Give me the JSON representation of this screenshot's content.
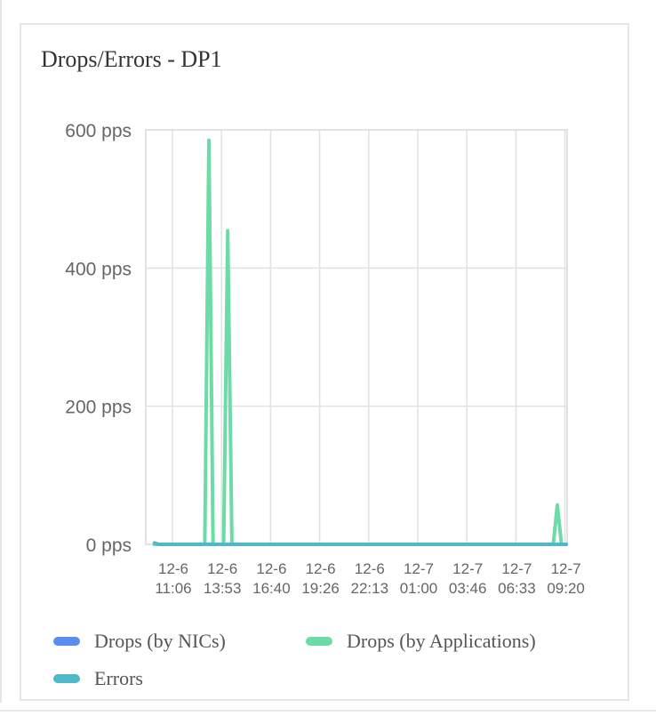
{
  "panel": {
    "title": "Drops/Errors - DP1"
  },
  "colors": {
    "drops_nics": "#5b8def",
    "drops_apps": "#6ddba6",
    "errors": "#4fb8c9",
    "grid": "#e2e2e2",
    "axis_text": "#666666"
  },
  "chart_data": {
    "type": "line",
    "title": "Drops/Errors - DP1",
    "xlabel": "",
    "ylabel": "",
    "y_unit": "pps",
    "ylim": [
      0,
      600
    ],
    "y_ticks": [
      "0 pps",
      "200 pps",
      "400 pps",
      "600 pps"
    ],
    "y_tick_values": [
      0,
      200,
      400,
      600
    ],
    "x_ticks": [
      {
        "date": "12-6",
        "time": "11:06"
      },
      {
        "date": "12-6",
        "time": "13:53"
      },
      {
        "date": "12-6",
        "time": "16:40"
      },
      {
        "date": "12-6",
        "time": "19:26"
      },
      {
        "date": "12-6",
        "time": "22:13"
      },
      {
        "date": "12-7",
        "time": "01:00"
      },
      {
        "date": "12-7",
        "time": "03:46"
      },
      {
        "date": "12-7",
        "time": "06:33"
      },
      {
        "date": "12-7",
        "time": "09:20"
      }
    ],
    "grid": true,
    "legend_position": "bottom",
    "series": [
      {
        "name": "Drops (by NICs)",
        "color": "#5b8def",
        "points": [
          [
            "12-6 10:05",
            0
          ],
          [
            "12-7 10:20",
            0
          ]
        ]
      },
      {
        "name": "Drops (by Applications)",
        "color": "#6ddba6",
        "points": [
          [
            "12-6 10:05",
            0
          ],
          [
            "12-6 12:56",
            0
          ],
          [
            "12-6 13:10",
            585
          ],
          [
            "12-6 13:24",
            0
          ],
          [
            "12-6 14:00",
            0
          ],
          [
            "12-6 14:14",
            454
          ],
          [
            "12-6 14:28",
            0
          ],
          [
            "12-7 08:40",
            0
          ],
          [
            "12-7 08:54",
            57
          ],
          [
            "12-7 09:08",
            0
          ],
          [
            "12-7 10:20",
            0
          ]
        ]
      },
      {
        "name": "Errors",
        "color": "#4fb8c9",
        "points": [
          [
            "12-6 10:05",
            2
          ],
          [
            "12-6 10:20",
            0
          ],
          [
            "12-7 10:20",
            0
          ]
        ]
      }
    ]
  },
  "legend": {
    "items": [
      {
        "label": "Drops (by NICs)",
        "color": "#5b8def"
      },
      {
        "label": "Drops (by Applications)",
        "color": "#6ddba6"
      },
      {
        "label": "Errors",
        "color": "#4fb8c9"
      }
    ]
  }
}
